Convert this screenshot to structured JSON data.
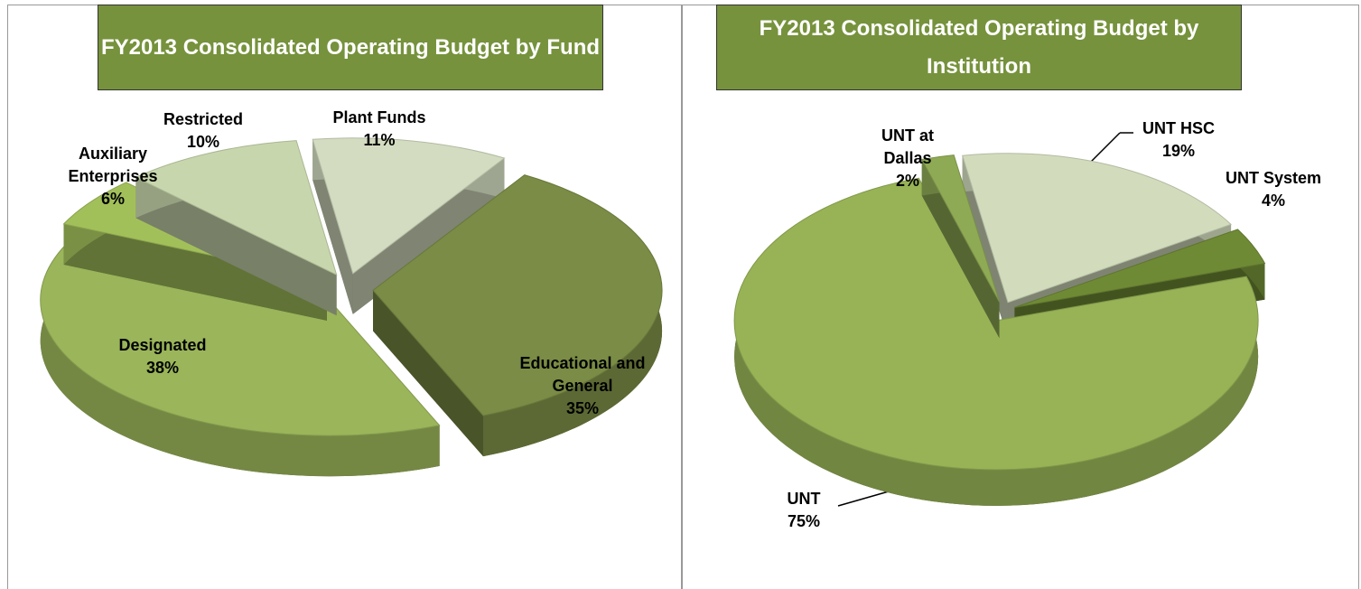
{
  "chart_data": [
    {
      "type": "pie",
      "title": "FY2013 Consolidated Operating Budget by Fund",
      "categories": [
        "Plant Funds",
        "Educational and General",
        "Designated",
        "Auxiliary Enterprises",
        "Restricted"
      ],
      "values": [
        11,
        35,
        38,
        6,
        10
      ],
      "value_labels": [
        "11%",
        "35%",
        "38%",
        "6%",
        "10%"
      ],
      "colors": [
        "#d3dcc0",
        "#7a8c45",
        "#9ab55a",
        "#a2c05a",
        "#c8d6ad"
      ]
    },
    {
      "type": "pie",
      "title": "FY2013 Consolidated Operating Budget by Institution",
      "categories": [
        "UNT HSC",
        "UNT System",
        "UNT",
        "UNT at Dallas"
      ],
      "values": [
        19,
        4,
        75,
        2
      ],
      "value_labels": [
        "19%",
        "4%",
        "75%",
        "2%"
      ],
      "colors": [
        "#d2dcbd",
        "#6f8a35",
        "#97b356",
        "#8faa55"
      ]
    }
  ]
}
